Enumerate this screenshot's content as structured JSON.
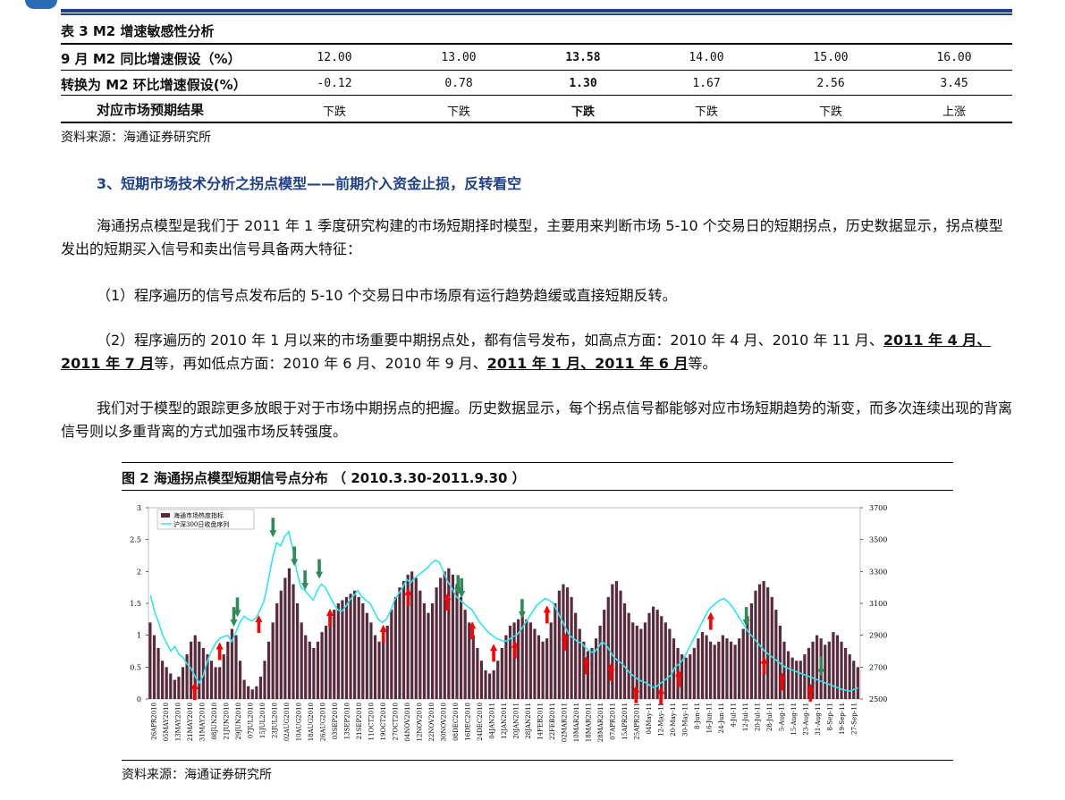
{
  "table": {
    "title": "表 3   M2 增速敏感性分析",
    "rows": [
      {
        "label": "9 月 M2 同比增速假设（%）",
        "cells": [
          "12.00",
          "13.00",
          "13.58",
          "14.00",
          "15.00",
          "16.00"
        ]
      },
      {
        "label": "转换为 M2 环比增速假设(%）",
        "cells": [
          "-0.12",
          "0.78",
          "1.30",
          "1.67",
          "2.56",
          "3.45"
        ]
      },
      {
        "label": "对应市场预期结果",
        "cells": [
          "下跌",
          "下跌",
          "下跌",
          "下跌",
          "下跌",
          "上涨"
        ]
      }
    ],
    "source": "资料来源：海通证券研究所"
  },
  "section_title": "3、短期市场技术分析之拐点模型——前期介入资金止损，反转看空",
  "paragraphs": {
    "p1": "海通拐点模型是我们于 2011 年 1 季度研究构建的市场短期择时模型，主要用来判断市场 5-10 个交易日的短期拐点，历史数据显示，拐点模型发出的短期买入信号和卖出信号具备两大特征：",
    "p2": "（1）程序遍历的信号点发布后的 5-10 个交易日中市场原有运行趋势趋缓或直接短期反转。",
    "p3a": "（2）程序遍历的 2010 年 1 月以来的市场重要中期拐点处，都有信号发布，如高点方面：2010 年 4 月、2010 年 11 月、",
    "p3b": "2011 年 4 月、2011 年 7 月",
    "p3c": "等，再如低点方面：2010 年 6 月、2010 年 9 月、",
    "p3d": "2011 年 1 月、2011 年 6 月",
    "p3e": "等。",
    "p4": "我们对于模型的跟踪更多放眼于对于市场中期拐点的把握。历史数据显示，每个拐点信号都能够对应市场短期趋势的渐变，而多次连续出现的背离信号则以多重背离的方式加强市场反转强度。"
  },
  "figure": {
    "title": "图 2    海通拐点模型短期信号点分布 （ 2010.3.30-2011.9.30 ）",
    "source": "资料来源：海通证券研究所"
  },
  "chart_data": {
    "type": "bar",
    "series": [
      {
        "name": "海通市场热度指标",
        "kind": "bar",
        "axis": "left",
        "color": "#5a2a3a"
      },
      {
        "name": "沪深300日收盘序列",
        "kind": "line",
        "axis": "right",
        "color": "#2ee6ee"
      }
    ],
    "ylim_left": [
      0,
      3
    ],
    "ylim_right": [
      2500,
      3700
    ],
    "yticks_left": [
      "0",
      "0.5",
      "1",
      "1.5",
      "2",
      "2.5",
      "3"
    ],
    "yticks_right": [
      "2500",
      "2700",
      "2900",
      "3100",
      "3300",
      "3500",
      "3700"
    ],
    "xticks": [
      "26APR2010",
      "05MAY2010",
      "13MAY2010",
      "21MAY2010",
      "31MAY2010",
      "08JUN2010",
      "21JUN2010",
      "29JUN2010",
      "07JUL2010",
      "15JUL2010",
      "23JUL2010",
      "02AUG2010",
      "10AUG2010",
      "18AUG2010",
      "26AUG2010",
      "03SEP2010",
      "13SEP2010",
      "21SEP2010",
      "11OCT2010",
      "19OCT2010",
      "27OCT2010",
      "04NOV2010",
      "12NOV2010",
      "22NOV2010",
      "30NOV2010",
      "08DEC2010",
      "16DEC2010",
      "24DEC2010",
      "04JAN2011",
      "12JAN2011",
      "20JAN2011",
      "28JAN2011",
      "14FEB2011",
      "22FEB2011",
      "02MAR2011",
      "10MAR2011",
      "18MAR2011",
      "28MAR2011",
      "07APR2011",
      "15APR2011",
      "25APR2011",
      "04May-11",
      "12-May-11",
      "20-May-11",
      "30-May-11",
      "8-Jun-11",
      "16-Jun-11",
      "24-Jun-11",
      "4-Jul-11",
      "12-Jul-11",
      "20-Jul-11",
      "28-Jul-11",
      "5-Aug-11",
      "15-Aug-11",
      "23-Aug-11",
      "31-Aug-11",
      "8-Sep-11",
      "19-Sep-11",
      "27-Sep-11"
    ],
    "heat": [
      1.2,
      1.0,
      0.8,
      0.6,
      0.5,
      0.4,
      0.3,
      0.35,
      0.5,
      0.7,
      0.9,
      1.0,
      0.9,
      0.8,
      0.7,
      0.6,
      0.5,
      0.5,
      0.7,
      0.9,
      1.1,
      1.0,
      0.6,
      0.3,
      0.2,
      0.15,
      0.2,
      0.35,
      0.6,
      0.9,
      1.2,
      1.5,
      1.7,
      1.9,
      2.05,
      1.8,
      1.5,
      1.2,
      1.0,
      0.9,
      0.8,
      0.9,
      1.05,
      1.15,
      1.3,
      1.4,
      1.5,
      1.55,
      1.6,
      1.65,
      1.7,
      1.6,
      1.5,
      1.35,
      1.2,
      1.0,
      0.9,
      0.95,
      1.15,
      1.4,
      1.6,
      1.75,
      1.85,
      1.95,
      2.0,
      1.9,
      1.7,
      1.5,
      1.35,
      1.5,
      1.75,
      1.9,
      2.0,
      2.05,
      1.95,
      1.8,
      1.6,
      1.4,
      1.2,
      1.0,
      0.8,
      0.6,
      0.45,
      0.4,
      0.45,
      0.6,
      0.8,
      1.0,
      1.15,
      1.2,
      1.25,
      1.3,
      1.25,
      1.2,
      1.1,
      1.0,
      0.9,
      0.95,
      1.2,
      1.5,
      1.7,
      1.8,
      1.75,
      1.6,
      1.35,
      1.1,
      0.9,
      0.75,
      0.8,
      0.95,
      1.15,
      1.4,
      1.6,
      1.8,
      1.85,
      1.7,
      1.5,
      1.35,
      1.2,
      1.15,
      1.1,
      1.2,
      1.35,
      1.45,
      1.4,
      1.3,
      1.2,
      1.1,
      0.95,
      0.8,
      0.7,
      0.65,
      0.7,
      0.8,
      0.95,
      1.05,
      1.0,
      0.9,
      0.85,
      0.9,
      1.0,
      0.95,
      0.9,
      0.85,
      0.95,
      1.1,
      1.3,
      1.5,
      1.7,
      1.8,
      1.85,
      1.75,
      1.6,
      1.4,
      1.15,
      0.9,
      0.75,
      0.65,
      0.6,
      0.6,
      0.7,
      0.8,
      0.9,
      1.0,
      0.95,
      0.85,
      0.9,
      1.05,
      1.0,
      0.9,
      0.8,
      0.7,
      0.6,
      0.5
    ],
    "hs300": [
      3150,
      3050,
      2980,
      2900,
      2850,
      2800,
      2830,
      2780,
      2760,
      2720,
      2690,
      2640,
      2600,
      2650,
      2740,
      2800,
      2850,
      2880,
      2890,
      2900,
      2860,
      2920,
      2980,
      3020,
      3000,
      2990,
      3010,
      3060,
      3120,
      3250,
      3380,
      3480,
      3460,
      3520,
      3550,
      3440,
      3300,
      3200,
      3180,
      3150,
      3120,
      3180,
      3220,
      3200,
      3150,
      3100,
      3060,
      3050,
      3080,
      3120,
      3150,
      3180,
      3140,
      3120,
      3100,
      3050,
      3000,
      2980,
      3000,
      3050,
      3120,
      3160,
      3200,
      3250,
      3230,
      3260,
      3280,
      3300,
      3320,
      3350,
      3370,
      3360,
      3300,
      3240,
      3200,
      3150,
      3120,
      3100,
      3080,
      3060,
      3020,
      2980,
      2950,
      2920,
      2900,
      2880,
      2870,
      2860,
      2870,
      2890,
      2900,
      2930,
      2970,
      3010,
      3050,
      3090,
      3110,
      3130,
      3120,
      3100,
      3050,
      3000,
      2950,
      2900,
      2880,
      2860,
      2850,
      2820,
      2800,
      2790,
      2820,
      2860,
      2840,
      2800,
      2760,
      2740,
      2720,
      2690,
      2660,
      2640,
      2620,
      2610,
      2600,
      2580,
      2570,
      2590,
      2610,
      2630,
      2650,
      2700,
      2720,
      2750,
      2800,
      2850,
      2900,
      2950,
      3000,
      3050,
      3080,
      3100,
      3120,
      3130,
      3110,
      3080,
      3040,
      3000,
      2960,
      2920,
      2890,
      2860,
      2830,
      2800,
      2780,
      2760,
      2740,
      2720,
      2700,
      2690,
      2680,
      2670,
      2660,
      2650,
      2640,
      2630,
      2620,
      2610,
      2600,
      2590,
      2580,
      2570,
      2560,
      2555,
      2550,
      2560,
      2570
    ],
    "signals_buy_red": [
      0.13,
      0.2,
      0.31,
      0.51,
      0.66,
      0.73,
      0.84,
      0.91,
      0.97,
      1.03,
      1.12,
      1.17,
      1.23,
      1.3,
      1.37,
      1.44,
      1.49,
      1.58,
      1.73,
      1.78,
      1.86
    ],
    "signals_sell_green": [
      0.24,
      0.25,
      0.35,
      0.41,
      0.44,
      0.48,
      0.87,
      0.88,
      1.05,
      1.68,
      1.89
    ]
  }
}
